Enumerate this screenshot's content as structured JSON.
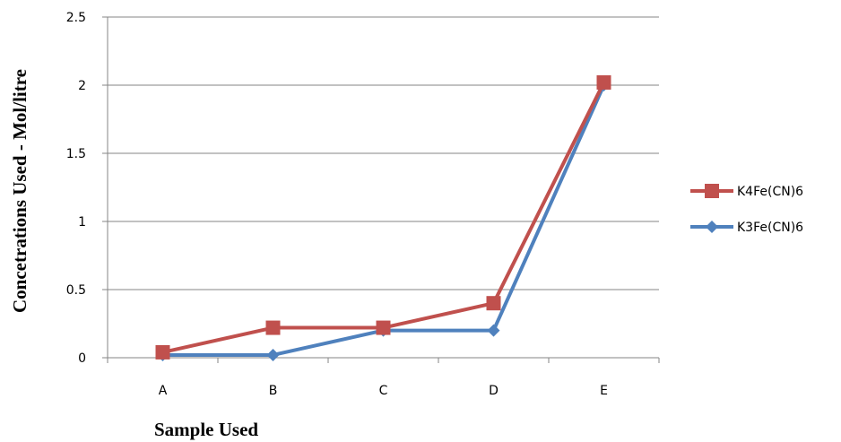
{
  "chart_data": {
    "type": "line",
    "categories": [
      "A",
      "B",
      "C",
      "D",
      "E"
    ],
    "series": [
      {
        "name": "K4Fe(CN)6",
        "values": [
          0.04,
          0.22,
          0.22,
          0.4,
          2.02
        ],
        "color": "#c0504d",
        "marker": "square"
      },
      {
        "name": "K3Fe(CN)6",
        "values": [
          0.02,
          0.02,
          0.2,
          0.2,
          2.0
        ],
        "color": "#4f81bd",
        "marker": "diamond"
      }
    ],
    "xlabel": "Sample Used",
    "ylabel": "Concetrations Used - Mol/litre",
    "ylim": [
      0,
      2.5
    ],
    "yticks": [
      "0",
      "0.5",
      "1",
      "1.5",
      "2",
      "2.5"
    ],
    "grid": true,
    "legend_position": "right"
  }
}
